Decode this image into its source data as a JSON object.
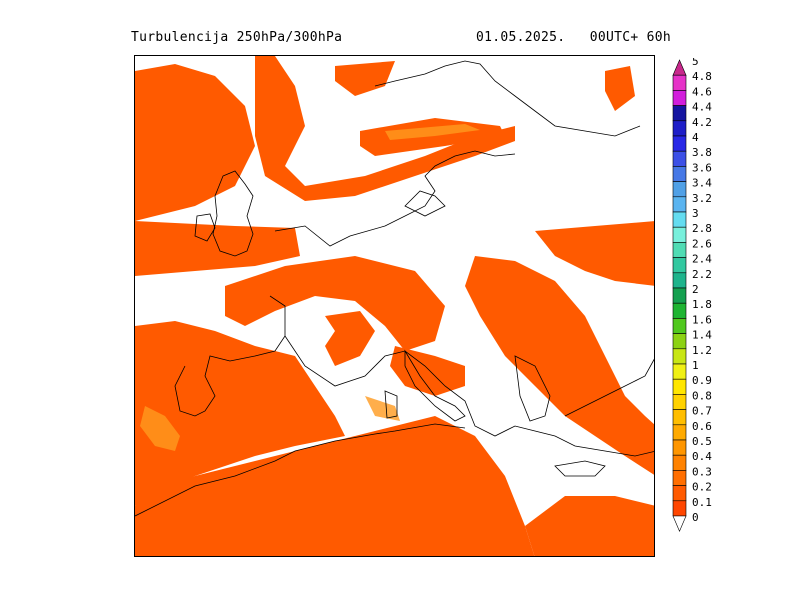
{
  "header": {
    "title_left": "Turbulencija 250hPa/300hPa",
    "title_right": "01.05.2025.   00UTC+ 60h"
  },
  "colorbar": {
    "labels": [
      "5",
      "4.8",
      "4.6",
      "4.4",
      "4.2",
      "4",
      "3.8",
      "3.6",
      "3.4",
      "3.2",
      "3",
      "2.8",
      "2.6",
      "2.4",
      "2.2",
      "2",
      "1.8",
      "1.6",
      "1.4",
      "1.2",
      "1",
      "0.9",
      "0.8",
      "0.7",
      "0.6",
      "0.5",
      "0.4",
      "0.3",
      "0.2",
      "0.1",
      "0"
    ],
    "colors": [
      "#c8288c",
      "#e632c8",
      "#d21edc",
      "#1414a0",
      "#1e1ec8",
      "#2828e6",
      "#3c50e6",
      "#4678e6",
      "#50a0e6",
      "#5ab4f0",
      "#64dcf0",
      "#78f0dc",
      "#50dcb4",
      "#32c8a0",
      "#1eb48c",
      "#14a050",
      "#1eb432",
      "#50c81e",
      "#8cd214",
      "#c8e614",
      "#f0f014",
      "#ffe600",
      "#ffd200",
      "#ffbe00",
      "#ffaa00",
      "#ff9600",
      "#ff8200",
      "#ff6e00",
      "#ff5a00",
      "#ff4600",
      "#ffffff"
    ]
  },
  "map": {
    "field_color": "#ff5a00",
    "highlight_color": "#ff9a1e",
    "coastline_color": "#000000"
  }
}
